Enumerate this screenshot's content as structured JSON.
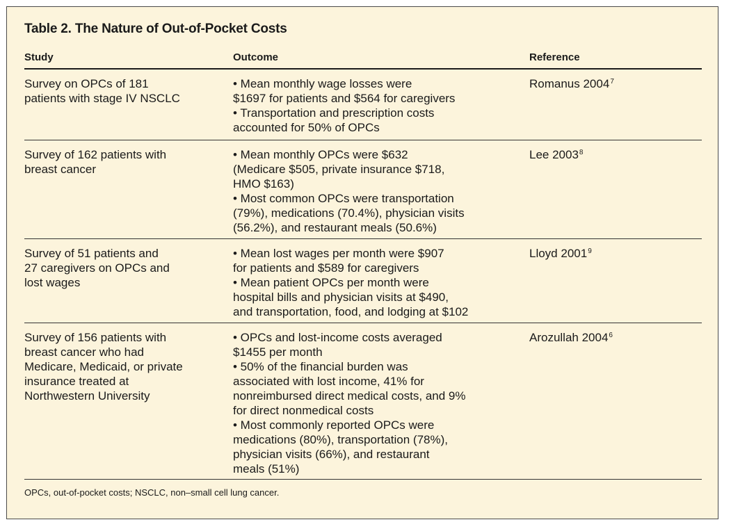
{
  "title": "Table 2. The Nature of Out-of-Pocket Costs",
  "headers": {
    "study": "Study",
    "outcome": "Outcome",
    "reference": "Reference"
  },
  "rows": [
    {
      "study": [
        "Survey on OPCs of 181",
        "patients with stage IV NSCLC"
      ],
      "outcome": [
        "• Mean monthly wage losses were",
        "$1697 for patients and $564 for caregivers",
        "• Transportation and prescription costs",
        "accounted for 50% of OPCs"
      ],
      "reference": "Romanus 2004",
      "ref_num": "7"
    },
    {
      "study": [
        "Survey of 162 patients with",
        "breast cancer"
      ],
      "outcome": [
        "• Mean monthly OPCs were $632",
        "(Medicare $505, private insurance $718,",
        "HMO $163)",
        "• Most common OPCs were transportation",
        "(79%), medications (70.4%), physician visits",
        "(56.2%), and restaurant meals (50.6%)"
      ],
      "reference": "Lee 2003",
      "ref_num": "8"
    },
    {
      "study": [
        "Survey of 51 patients and",
        "27 caregivers on OPCs and",
        "lost wages"
      ],
      "outcome": [
        "• Mean lost wages per month were $907",
        "for patients and $589 for caregivers",
        "• Mean patient OPCs per month were",
        "hospital bills and physician visits at $490,",
        "and transportation, food, and lodging at $102"
      ],
      "reference": "Lloyd 2001",
      "ref_num": "9"
    },
    {
      "study": [
        "Survey of 156 patients with",
        "breast cancer who had",
        "Medicare, Medicaid, or private",
        "insurance treated at",
        "Northwestern University"
      ],
      "outcome": [
        "• OPCs and lost-income costs averaged",
        "$1455 per month",
        "• 50% of the financial burden was",
        "associated with lost income, 41% for",
        "nonreimbursed direct medical costs, and 9%",
        "for direct nonmedical costs",
        "• Most commonly reported OPCs were",
        "medications (80%), transportation (78%),",
        "physician visits (66%), and restaurant",
        "meals (51%)"
      ],
      "reference": "Arozullah 2004",
      "ref_num": "6"
    }
  ],
  "footnote": "OPCs, out-of-pocket costs; NSCLC, non–small cell lung cancer."
}
